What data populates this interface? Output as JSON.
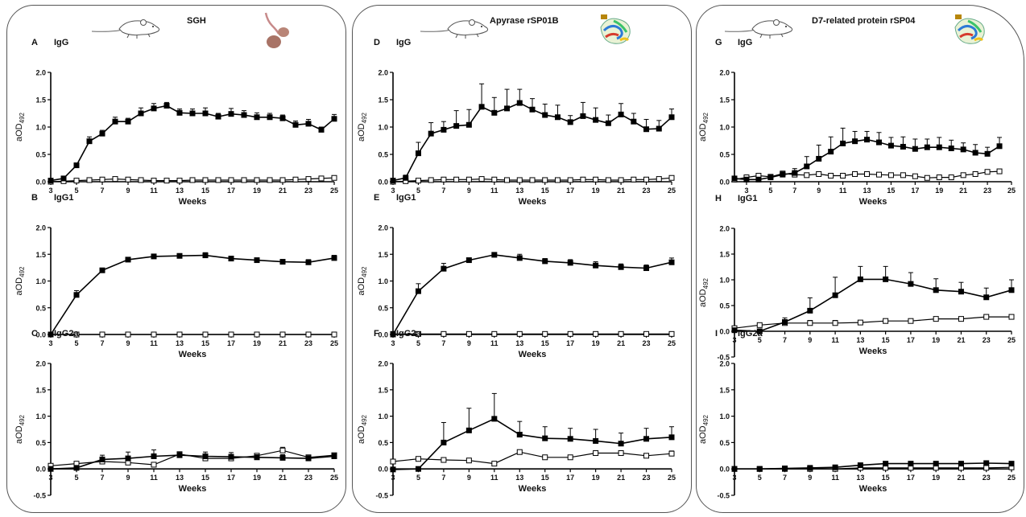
{
  "columns": [
    {
      "title": "SGH",
      "icons": [
        "mouse-icon",
        "salivary-gland-icon"
      ]
    },
    {
      "title": "Apyrase rSP01B",
      "icons": [
        "mouse-icon",
        "protein-structure-icon"
      ]
    },
    {
      "title": "D7-related protein rSP04",
      "icons": [
        "mouse-icon",
        "protein-structure-icon"
      ]
    }
  ],
  "colors": {
    "line": "#000000",
    "frame": "#555555"
  },
  "chart_data": [
    {
      "type": "line",
      "letter": "A",
      "title": "IgG",
      "xlabel": "Weeks",
      "ylabel": "aOD492",
      "ylabel_main": "aOD",
      "ylabel_sub": "492",
      "xlim": [
        3,
        25
      ],
      "ylim": [
        0,
        2.0
      ],
      "xticks": [
        3,
        5,
        7,
        9,
        11,
        13,
        15,
        17,
        19,
        21,
        23,
        25
      ],
      "yticks": [
        "0.0",
        "0.5",
        "1.0",
        "1.5",
        "2.0"
      ],
      "marker_style": [
        "filled-square",
        "open-square"
      ],
      "x": [
        3,
        4,
        5,
        6,
        7,
        8,
        9,
        10,
        11,
        12,
        13,
        14,
        15,
        16,
        17,
        18,
        19,
        20,
        21,
        22,
        23,
        24,
        25
      ],
      "series": [
        {
          "values": [
            0.02,
            0.06,
            0.3,
            0.74,
            0.88,
            1.1,
            1.1,
            1.25,
            1.34,
            1.39,
            1.26,
            1.25,
            1.25,
            1.19,
            1.24,
            1.22,
            1.18,
            1.18,
            1.16,
            1.04,
            1.06,
            0.95,
            1.15
          ],
          "errors": [
            0.01,
            0.02,
            0.04,
            0.08,
            0.06,
            0.08,
            0.06,
            0.1,
            0.09,
            0.06,
            0.07,
            0.08,
            0.1,
            0.06,
            0.1,
            0.08,
            0.08,
            0.07,
            0.06,
            0.07,
            0.08,
            0.05,
            0.08
          ]
        },
        {
          "values": [
            0.0,
            0.01,
            0.02,
            0.03,
            0.04,
            0.05,
            0.04,
            0.03,
            0.02,
            0.02,
            0.02,
            0.03,
            0.03,
            0.03,
            0.03,
            0.03,
            0.03,
            0.03,
            0.03,
            0.04,
            0.05,
            0.06,
            0.07
          ],
          "errors": [
            0,
            0,
            0,
            0,
            0,
            0,
            0,
            0,
            0,
            0,
            0,
            0,
            0,
            0,
            0,
            0,
            0,
            0,
            0,
            0,
            0,
            0,
            0
          ]
        }
      ]
    },
    {
      "type": "line",
      "letter": "B",
      "title": "IgG1",
      "xlabel": "Weeks",
      "ylabel": "aOD492",
      "ylabel_main": "aOD",
      "ylabel_sub": "492",
      "xlim": [
        3,
        25
      ],
      "ylim": [
        0,
        2.0
      ],
      "xticks": [
        3,
        5,
        7,
        9,
        11,
        13,
        15,
        17,
        19,
        21,
        23,
        25
      ],
      "yticks": [
        "0.0",
        "0.5",
        "1.0",
        "1.5",
        "2.0"
      ],
      "marker_style": [
        "filled-square",
        "open-square"
      ],
      "x": [
        3,
        5,
        7,
        9,
        11,
        13,
        15,
        17,
        19,
        21,
        23,
        25
      ],
      "series": [
        {
          "values": [
            0.0,
            0.74,
            1.2,
            1.4,
            1.46,
            1.47,
            1.48,
            1.42,
            1.39,
            1.36,
            1.35,
            1.43
          ],
          "errors": [
            0.01,
            0.08,
            0.03,
            0.04,
            0.02,
            0.04,
            0.05,
            0.03,
            0.04,
            0.04,
            0.05,
            0.05
          ]
        },
        {
          "values": [
            0,
            0,
            0,
            0,
            0,
            0,
            0,
            0,
            0,
            0,
            0,
            0
          ],
          "errors": [
            0,
            0,
            0,
            0,
            0,
            0,
            0,
            0,
            0,
            0,
            0,
            0
          ]
        }
      ]
    },
    {
      "type": "line",
      "letter": "C",
      "title": "IgG2a",
      "xlabel": "Weeks",
      "ylabel": "aOD492",
      "ylabel_main": "aOD",
      "ylabel_sub": "492",
      "xlim": [
        3,
        25
      ],
      "ylim": [
        -0.5,
        2.0
      ],
      "xticks": [
        3,
        5,
        7,
        9,
        11,
        13,
        15,
        17,
        19,
        21,
        23,
        25
      ],
      "yticks": [
        "-0.5",
        "0.0",
        "0.5",
        "1.0",
        "1.5",
        "2.0"
      ],
      "marker_style": [
        "filled-square",
        "open-square"
      ],
      "x": [
        3,
        5,
        7,
        9,
        11,
        13,
        15,
        17,
        19,
        21,
        23,
        25
      ],
      "series": [
        {
          "values": [
            0.0,
            0.02,
            0.18,
            0.2,
            0.24,
            0.26,
            0.24,
            0.23,
            0.22,
            0.21,
            0.2,
            0.24
          ],
          "errors": [
            0.01,
            0.02,
            0.08,
            0.12,
            0.12,
            0.06,
            0.08,
            0.08,
            0.05,
            0.06,
            0.05,
            0.05
          ]
        },
        {
          "values": [
            0.06,
            0.1,
            0.14,
            0.12,
            0.08,
            0.28,
            0.2,
            0.2,
            0.25,
            0.35,
            0.22,
            0.26
          ],
          "errors": [
            0,
            0,
            0,
            0,
            0,
            0,
            0,
            0,
            0,
            0.06,
            0,
            0
          ]
        }
      ]
    },
    {
      "type": "line",
      "letter": "D",
      "title": "IgG",
      "xlabel": "Weeks",
      "ylabel": "aOD492",
      "ylabel_main": "aOD",
      "ylabel_sub": "492",
      "xlim": [
        3,
        25
      ],
      "ylim": [
        0,
        2.0
      ],
      "xticks": [
        3,
        5,
        7,
        9,
        11,
        13,
        15,
        17,
        19,
        21,
        23,
        25
      ],
      "yticks": [
        "0.0",
        "0.5",
        "1.0",
        "1.5",
        "2.0"
      ],
      "marker_style": [
        "filled-square",
        "open-square"
      ],
      "x": [
        3,
        4,
        5,
        6,
        7,
        8,
        9,
        10,
        11,
        12,
        13,
        14,
        15,
        16,
        17,
        18,
        19,
        20,
        21,
        22,
        23,
        24,
        25
      ],
      "series": [
        {
          "values": [
            0.02,
            0.07,
            0.52,
            0.88,
            0.95,
            1.02,
            1.04,
            1.37,
            1.26,
            1.34,
            1.44,
            1.32,
            1.22,
            1.18,
            1.09,
            1.2,
            1.13,
            1.07,
            1.23,
            1.1,
            0.96,
            0.97,
            1.18
          ],
          "errors": [
            0.01,
            0.05,
            0.2,
            0.2,
            0.15,
            0.28,
            0.28,
            0.42,
            0.28,
            0.35,
            0.25,
            0.2,
            0.2,
            0.22,
            0.12,
            0.25,
            0.22,
            0.15,
            0.2,
            0.15,
            0.18,
            0.15,
            0.15
          ]
        },
        {
          "values": [
            0.0,
            0.01,
            0.02,
            0.03,
            0.04,
            0.04,
            0.04,
            0.05,
            0.04,
            0.03,
            0.03,
            0.03,
            0.03,
            0.03,
            0.03,
            0.04,
            0.04,
            0.03,
            0.03,
            0.04,
            0.04,
            0.05,
            0.07
          ],
          "errors": [
            0,
            0,
            0,
            0,
            0,
            0,
            0,
            0,
            0,
            0,
            0,
            0,
            0,
            0,
            0,
            0,
            0,
            0,
            0,
            0,
            0,
            0,
            0
          ]
        }
      ]
    },
    {
      "type": "line",
      "letter": "E",
      "title": "IgG1",
      "xlabel": "Weeks",
      "ylabel": "aOD492",
      "ylabel_main": "aOD",
      "ylabel_sub": "492",
      "xlim": [
        3,
        25
      ],
      "ylim": [
        0,
        2.0
      ],
      "xticks": [
        3,
        5,
        7,
        9,
        11,
        13,
        15,
        17,
        19,
        21,
        23,
        25
      ],
      "yticks": [
        "0.0",
        "0.5",
        "1.0",
        "1.5",
        "2.0"
      ],
      "marker_style": [
        "filled-square",
        "open-square"
      ],
      "x": [
        3,
        5,
        7,
        9,
        11,
        13,
        15,
        17,
        19,
        21,
        23,
        25
      ],
      "series": [
        {
          "values": [
            0.0,
            0.81,
            1.23,
            1.39,
            1.49,
            1.43,
            1.37,
            1.34,
            1.29,
            1.26,
            1.24,
            1.35
          ],
          "errors": [
            0.01,
            0.14,
            0.1,
            0.04,
            0.03,
            0.07,
            0.05,
            0.06,
            0.07,
            0.06,
            0.06,
            0.08
          ]
        },
        {
          "values": [
            0.01,
            0.01,
            0.01,
            0.01,
            0.01,
            0.01,
            0.01,
            0.01,
            0.01,
            0.01,
            0.01,
            0.01
          ],
          "errors": [
            0,
            0,
            0,
            0,
            0,
            0,
            0,
            0,
            0,
            0,
            0,
            0
          ]
        }
      ]
    },
    {
      "type": "line",
      "letter": "F",
      "title": "IgG2a",
      "xlabel": "Weeks",
      "ylabel": "aOD492",
      "ylabel_main": "aOD",
      "ylabel_sub": "492",
      "xlim": [
        3,
        25
      ],
      "ylim": [
        -0.5,
        2.0
      ],
      "xticks": [
        3,
        5,
        7,
        9,
        11,
        13,
        15,
        17,
        19,
        21,
        23,
        25
      ],
      "yticks": [
        "-0.5",
        "0.0",
        "0.5",
        "1.0",
        "1.5",
        "2.0"
      ],
      "marker_style": [
        "filled-square",
        "open-square"
      ],
      "x": [
        3,
        5,
        7,
        9,
        11,
        13,
        15,
        17,
        19,
        21,
        23,
        25
      ],
      "series": [
        {
          "values": [
            -0.01,
            0.0,
            0.5,
            0.73,
            0.95,
            0.65,
            0.58,
            0.57,
            0.53,
            0.48,
            0.57,
            0.6
          ],
          "errors": [
            0.01,
            0.01,
            0.38,
            0.42,
            0.48,
            0.25,
            0.22,
            0.2,
            0.22,
            0.2,
            0.2,
            0.2
          ]
        },
        {
          "values": [
            0.14,
            0.19,
            0.17,
            0.16,
            0.1,
            0.32,
            0.22,
            0.22,
            0.3,
            0.3,
            0.25,
            0.29
          ],
          "errors": [
            0,
            0,
            0,
            0,
            0,
            0,
            0,
            0,
            0,
            0,
            0,
            0.05
          ]
        }
      ]
    },
    {
      "type": "line",
      "letter": "G",
      "title": "IgG",
      "xlabel": "Weeks",
      "ylabel": "aOD492",
      "ylabel_main": "aOD",
      "ylabel_sub": "492",
      "xlim": [
        2,
        25
      ],
      "ylim": [
        0,
        2.0
      ],
      "xticks": [
        3,
        5,
        7,
        9,
        11,
        13,
        15,
        17,
        19,
        21,
        23,
        25
      ],
      "yticks": [
        "0.0",
        "0.5",
        "1.0",
        "1.5",
        "2.0"
      ],
      "marker_style": [
        "filled-square",
        "open-square"
      ],
      "x": [
        2,
        3,
        4,
        5,
        6,
        7,
        8,
        9,
        10,
        11,
        12,
        13,
        14,
        15,
        16,
        17,
        18,
        19,
        20,
        21,
        22,
        23,
        24
      ],
      "series": [
        {
          "values": [
            0.06,
            0.04,
            0.04,
            0.08,
            0.13,
            0.16,
            0.28,
            0.42,
            0.55,
            0.7,
            0.74,
            0.77,
            0.72,
            0.66,
            0.64,
            0.6,
            0.63,
            0.63,
            0.61,
            0.59,
            0.53,
            0.51,
            0.65
          ],
          "errors": [
            0.02,
            0.02,
            0.02,
            0.04,
            0.05,
            0.08,
            0.18,
            0.25,
            0.27,
            0.28,
            0.18,
            0.15,
            0.18,
            0.15,
            0.18,
            0.18,
            0.15,
            0.18,
            0.15,
            0.12,
            0.15,
            0.12,
            0.16
          ]
        },
        {
          "values": [
            0.04,
            0.08,
            0.11,
            0.09,
            0.15,
            0.13,
            0.12,
            0.14,
            0.11,
            0.11,
            0.14,
            0.14,
            0.13,
            0.12,
            0.12,
            0.1,
            0.07,
            0.08,
            0.08,
            0.12,
            0.14,
            0.18,
            0.19
          ],
          "errors": [
            0,
            0,
            0,
            0,
            0,
            0,
            0,
            0,
            0,
            0,
            0,
            0,
            0,
            0,
            0,
            0,
            0,
            0,
            0,
            0,
            0,
            0,
            0
          ]
        }
      ]
    },
    {
      "type": "line",
      "letter": "H",
      "title": "IgG1",
      "xlabel": "Weeks",
      "ylabel": "aOD492",
      "ylabel_main": "aOD",
      "ylabel_sub": "492",
      "xlim": [
        3,
        25
      ],
      "ylim": [
        -0.5,
        2.0
      ],
      "xticks": [
        3,
        5,
        7,
        9,
        11,
        13,
        15,
        17,
        19,
        21,
        23,
        25
      ],
      "yticks": [
        "-0.5",
        "0.0",
        "0.5",
        "1.0",
        "1.5",
        "2.0"
      ],
      "marker_style": [
        "filled-square",
        "open-square"
      ],
      "x": [
        3,
        5,
        7,
        9,
        11,
        13,
        15,
        17,
        19,
        21,
        23,
        25
      ],
      "series": [
        {
          "values": [
            0.02,
            0.0,
            0.18,
            0.4,
            0.7,
            1.01,
            1.01,
            0.92,
            0.8,
            0.77,
            0.66,
            0.8
          ],
          "errors": [
            0.01,
            0.01,
            0.08,
            0.25,
            0.35,
            0.25,
            0.25,
            0.22,
            0.22,
            0.18,
            0.18,
            0.2
          ]
        },
        {
          "values": [
            0.06,
            0.12,
            0.16,
            0.16,
            0.16,
            0.17,
            0.2,
            0.2,
            0.24,
            0.24,
            0.28,
            0.28
          ],
          "errors": [
            0,
            0,
            0,
            0.05,
            0.05,
            0,
            0,
            0,
            0,
            0,
            0,
            0
          ]
        }
      ]
    },
    {
      "type": "line",
      "letter": "I",
      "title": "IgG2a",
      "xlabel": "Weeks",
      "ylabel": "aOD492",
      "ylabel_main": "aOD",
      "ylabel_sub": "492",
      "xlim": [
        3,
        25
      ],
      "ylim": [
        -0.5,
        2.0
      ],
      "xticks": [
        3,
        5,
        7,
        9,
        11,
        13,
        15,
        17,
        19,
        21,
        23,
        25
      ],
      "yticks": [
        "-0.5",
        "0.0",
        "0.5",
        "1.0",
        "1.5",
        "2.0"
      ],
      "marker_style": [
        "filled-square",
        "open-square"
      ],
      "x": [
        3,
        5,
        7,
        9,
        11,
        13,
        15,
        17,
        19,
        21,
        23,
        25
      ],
      "series": [
        {
          "values": [
            0.0,
            0.0,
            0.01,
            0.02,
            0.03,
            0.07,
            0.1,
            0.1,
            0.1,
            0.1,
            0.11,
            0.1
          ],
          "errors": [
            0.01,
            0.01,
            0.02,
            0.03,
            0.04,
            0.04,
            0.04,
            0.04,
            0.04,
            0.04,
            0.04,
            0.04
          ]
        },
        {
          "values": [
            0.0,
            0.0,
            0.0,
            0.0,
            0.0,
            0.02,
            0.02,
            0.02,
            0.02,
            0.02,
            0.02,
            0.03
          ],
          "errors": [
            0,
            0,
            0,
            0,
            0,
            0,
            0,
            0,
            0,
            0,
            0,
            0
          ]
        }
      ]
    }
  ]
}
